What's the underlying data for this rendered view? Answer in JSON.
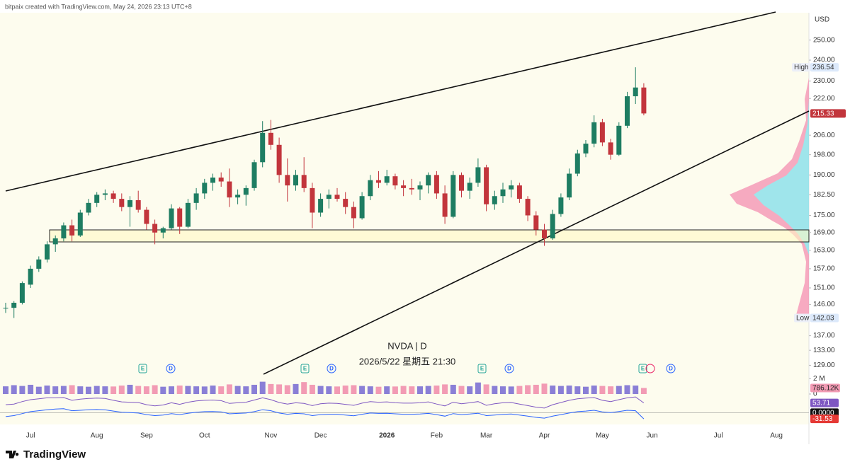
{
  "header": "bitpaix created with TradingView.com, May 24, 2026 23:13 UTC+8",
  "footer": "TradingView",
  "events": [
    "E",
    "D",
    "E",
    "D",
    "E",
    "D",
    "E",
    "D"
  ],
  "chart_data": {
    "type": "candlestick",
    "symbol_label": "NVDA | D",
    "crosshair_label": "2026/5/22 星期五 21:30",
    "currency": "USD",
    "log_scale": true,
    "grid": false,
    "up_color": "#1e7d62",
    "down_color": "#c2353c",
    "high_marker": "High",
    "low_marker": "Low",
    "ylim": [
      126.5,
      264.3
    ],
    "yticks": [
      {
        "value": 250,
        "label": "250.00"
      },
      {
        "value": 240,
        "label": "240.00"
      },
      {
        "value": 230,
        "label": "230.00"
      },
      {
        "value": 222,
        "label": "222.00"
      },
      {
        "value": 206,
        "label": "206.00"
      },
      {
        "value": 198,
        "label": "198.00"
      },
      {
        "value": 190,
        "label": "190.00"
      },
      {
        "value": 182.5,
        "label": "182.50"
      },
      {
        "value": 175,
        "label": "175.00"
      },
      {
        "value": 169,
        "label": "169.00"
      },
      {
        "value": 163,
        "label": "163.00"
      },
      {
        "value": 157,
        "label": "157.00"
      },
      {
        "value": 151,
        "label": "151.00"
      },
      {
        "value": 146,
        "label": "146.00"
      },
      {
        "value": 137,
        "label": "137.00"
      },
      {
        "value": 133,
        "label": "133.00"
      },
      {
        "value": 129,
        "label": "129.00"
      }
    ],
    "categories": [
      null,
      null,
      null,
      "Jul",
      null,
      null,
      null,
      null,
      null,
      null,
      null,
      "Aug",
      null,
      null,
      null,
      null,
      null,
      "Sep",
      null,
      null,
      null,
      null,
      null,
      null,
      "Oct",
      null,
      null,
      null,
      null,
      null,
      null,
      null,
      "Nov",
      null,
      null,
      null,
      null,
      null,
      "Dec",
      null,
      null,
      null,
      null,
      null,
      null,
      null,
      "2026",
      null,
      null,
      null,
      null,
      null,
      "Feb",
      null,
      null,
      null,
      null,
      null,
      "Mar",
      null,
      null,
      null,
      null,
      null,
      null,
      "Apr",
      null,
      null,
      null,
      null,
      null,
      null,
      "May",
      null,
      null,
      null,
      null,
      null,
      "Jun",
      null,
      null,
      null,
      null,
      null,
      null,
      null,
      "Jul",
      null,
      null,
      null,
      null,
      null,
      null,
      "Aug",
      null,
      null,
      null
    ],
    "open": [
      145,
      145,
      146.5,
      152,
      157,
      160,
      165,
      167,
      171.5,
      168,
      176,
      179.5,
      182.5,
      183,
      181,
      178,
      180.5,
      177,
      172,
      169,
      170.5,
      177.5,
      171,
      179.5,
      183,
      187,
      189,
      187.5,
      181.5,
      182.5,
      185,
      195,
      207,
      202,
      190,
      186,
      190,
      185,
      176,
      181,
      182.5,
      181,
      178,
      174,
      182,
      188,
      187,
      189.5,
      186,
      185,
      184.5,
      186,
      190,
      183,
      174.5,
      190,
      184,
      187,
      193,
      179,
      182,
      184.5,
      186,
      181,
      175,
      170,
      167,
      175.5,
      181.5,
      190.5,
      198.5,
      202.5,
      211.5,
      203,
      198,
      210,
      223,
      227,
      null,
      null,
      null,
      null,
      null,
      null,
      null,
      null,
      null,
      null,
      null,
      null,
      null,
      null,
      null,
      null,
      null,
      null,
      null
    ],
    "high": [
      146.5,
      147,
      153,
      158,
      161,
      166,
      168,
      172.5,
      173.5,
      177,
      181,
      183.5,
      184.5,
      184,
      183,
      182,
      184,
      178,
      173.5,
      171,
      179,
      178,
      181,
      185,
      188.5,
      190.5,
      191,
      192.5,
      184.5,
      186,
      196,
      212,
      212.5,
      205,
      196.5,
      192,
      197,
      187,
      183,
      184.5,
      185,
      183.5,
      180,
      183.5,
      190,
      191.5,
      192,
      190.5,
      188,
      188.5,
      187.5,
      191,
      191.5,
      186,
      191.5,
      191,
      189,
      196.5,
      194,
      184,
      187,
      188,
      187,
      182,
      176.5,
      172,
      177,
      183,
      192.5,
      200,
      204,
      214.5,
      213,
      204.5,
      211.5,
      225,
      236.54,
      229,
      null,
      null,
      null,
      null,
      null,
      null,
      null,
      null,
      null,
      null,
      null,
      null,
      null,
      null,
      null,
      null,
      null,
      null,
      null
    ],
    "low": [
      143.5,
      142.03,
      146,
      151,
      156,
      159,
      162.5,
      166,
      166,
      167.5,
      175,
      178,
      180.5,
      179.5,
      176.5,
      171,
      176,
      170,
      165,
      167,
      170,
      168.5,
      170.5,
      177,
      181,
      184,
      185.5,
      178,
      179,
      178.5,
      184,
      193,
      200,
      187,
      180,
      184,
      183.5,
      170.5,
      174.5,
      177.5,
      180,
      175.5,
      170.5,
      173.5,
      180.5,
      185,
      186,
      184.5,
      182,
      182.5,
      180.5,
      183,
      181,
      172,
      174,
      181.5,
      181,
      185.5,
      176.5,
      177,
      179.5,
      181.5,
      179.5,
      173,
      168,
      164.5,
      166.5,
      174.5,
      180.5,
      189.5,
      197,
      201,
      201.5,
      196,
      197.5,
      209,
      219.5,
      214.5,
      null,
      null,
      null,
      null,
      null,
      null,
      null,
      null,
      null,
      null,
      null,
      null,
      null,
      null,
      null,
      null,
      null,
      null,
      null
    ],
    "close": [
      145,
      146.5,
      152.5,
      157,
      160,
      165,
      167,
      171.5,
      168,
      176,
      179.5,
      182.5,
      183,
      181,
      178,
      180.5,
      177,
      172,
      169,
      170.5,
      177.5,
      171,
      179.5,
      183,
      187,
      189,
      187.5,
      181.5,
      182.5,
      185,
      195,
      207,
      202,
      190,
      186,
      190,
      185,
      176,
      181,
      182.5,
      181,
      178,
      174,
      182,
      188,
      187,
      189.5,
      186,
      185,
      184.5,
      186,
      190,
      183,
      174.5,
      190,
      184,
      187,
      193,
      179,
      182,
      184.5,
      186,
      181,
      175,
      170,
      167,
      175.5,
      181.5,
      190.5,
      198.5,
      202.5,
      211.5,
      203,
      198,
      210,
      223,
      227,
      215.33,
      null,
      null,
      null,
      null,
      null,
      null,
      null,
      null,
      null,
      null,
      null,
      null,
      null,
      null,
      null,
      null,
      null,
      null,
      null
    ],
    "volume": {
      "up_color": "#8a7fd6",
      "down_color": "#f29bb4",
      "ylim": [
        0,
        2300000
      ],
      "yticks": [
        {
          "value": 2000000,
          "label": "2 M"
        },
        0
      ],
      "value_label": "786.12K",
      "values": [
        1000000,
        1150000,
        1050000,
        1200000,
        950000,
        1100000,
        1000000,
        1050000,
        1150000,
        1000000,
        950000,
        1050000,
        1000000,
        980000,
        1100000,
        1200000,
        1050000,
        1000000,
        1150000,
        950000,
        1000000,
        1100000,
        1050000,
        1000000,
        980000,
        1100000,
        1000000,
        1250000,
        1050000,
        1000000,
        1200000,
        1600000,
        1300000,
        1250000,
        1150000,
        1300000,
        1550000,
        1200000,
        1050000,
        1000000,
        980000,
        1100000,
        1150000,
        1050000,
        1000000,
        950000,
        1000000,
        980000,
        1050000,
        1000000,
        1000000,
        1050000,
        1100000,
        1250000,
        1200000,
        1050000,
        1000000,
        1500000,
        1250000,
        1050000,
        1000000,
        980000,
        1050000,
        1150000,
        1200000,
        1350000,
        1100000,
        1050000,
        1100000,
        1000000,
        950000,
        1100000,
        1050000,
        1000000,
        1050000,
        1150000,
        1100000,
        786120,
        null,
        null,
        null,
        null,
        null,
        null,
        null,
        null,
        null,
        null,
        null,
        null,
        null,
        null,
        null,
        null,
        null,
        null,
        null
      ]
    },
    "oscillators": [
      {
        "color": "#7e57c2",
        "ylim": [
          30,
          80
        ],
        "values": [
          48,
          50,
          58,
          64,
          67,
          70,
          70,
          71,
          62,
          66,
          68,
          69,
          68,
          62,
          57,
          56,
          55,
          48,
          44,
          47,
          54,
          49,
          56,
          60,
          62,
          63,
          61,
          52,
          54,
          56,
          63,
          70,
          64,
          55,
          50,
          54,
          52,
          45,
          51,
          53,
          52,
          49,
          46,
          53,
          58,
          56,
          57,
          54,
          53,
          53,
          54,
          57,
          50,
          44,
          56,
          51,
          54,
          58,
          46,
          51,
          54,
          55,
          50,
          45,
          40,
          37,
          48,
          55,
          62,
          67,
          69,
          71,
          62,
          58,
          64,
          70,
          73,
          53.71,
          null,
          null,
          null,
          null,
          null,
          null,
          null,
          null,
          null,
          null,
          null,
          null,
          null,
          null,
          null,
          null,
          null,
          null,
          null
        ]
      },
      {
        "color": "#2962ff",
        "label_color": "#e53935",
        "ylim": [
          -60,
          30
        ],
        "zero_line": {
          "value": 0,
          "label": "0.0000"
        },
        "values": [
          -20,
          -15,
          -5,
          5,
          10,
          15,
          18,
          20,
          10,
          12,
          15,
          16,
          14,
          8,
          2,
          0,
          -2,
          -10,
          -15,
          -12,
          -5,
          -10,
          -3,
          2,
          5,
          6,
          4,
          -6,
          -4,
          -2,
          5,
          15,
          10,
          -2,
          -8,
          -4,
          -6,
          -15,
          -10,
          -8,
          -8,
          -12,
          -16,
          -8,
          -2,
          -4,
          -3,
          -6,
          -8,
          -8,
          -7,
          -4,
          -10,
          -18,
          -5,
          -10,
          -7,
          -3,
          -15,
          -12,
          -9,
          -7,
          -12,
          -18,
          -24,
          -28,
          -18,
          -10,
          -2,
          5,
          8,
          12,
          4,
          0,
          6,
          12,
          10,
          -31.53,
          null,
          null,
          null,
          null,
          null,
          null,
          null,
          null,
          null,
          null,
          null,
          null,
          null,
          null,
          null,
          null,
          null,
          null,
          null
        ]
      }
    ]
  }
}
